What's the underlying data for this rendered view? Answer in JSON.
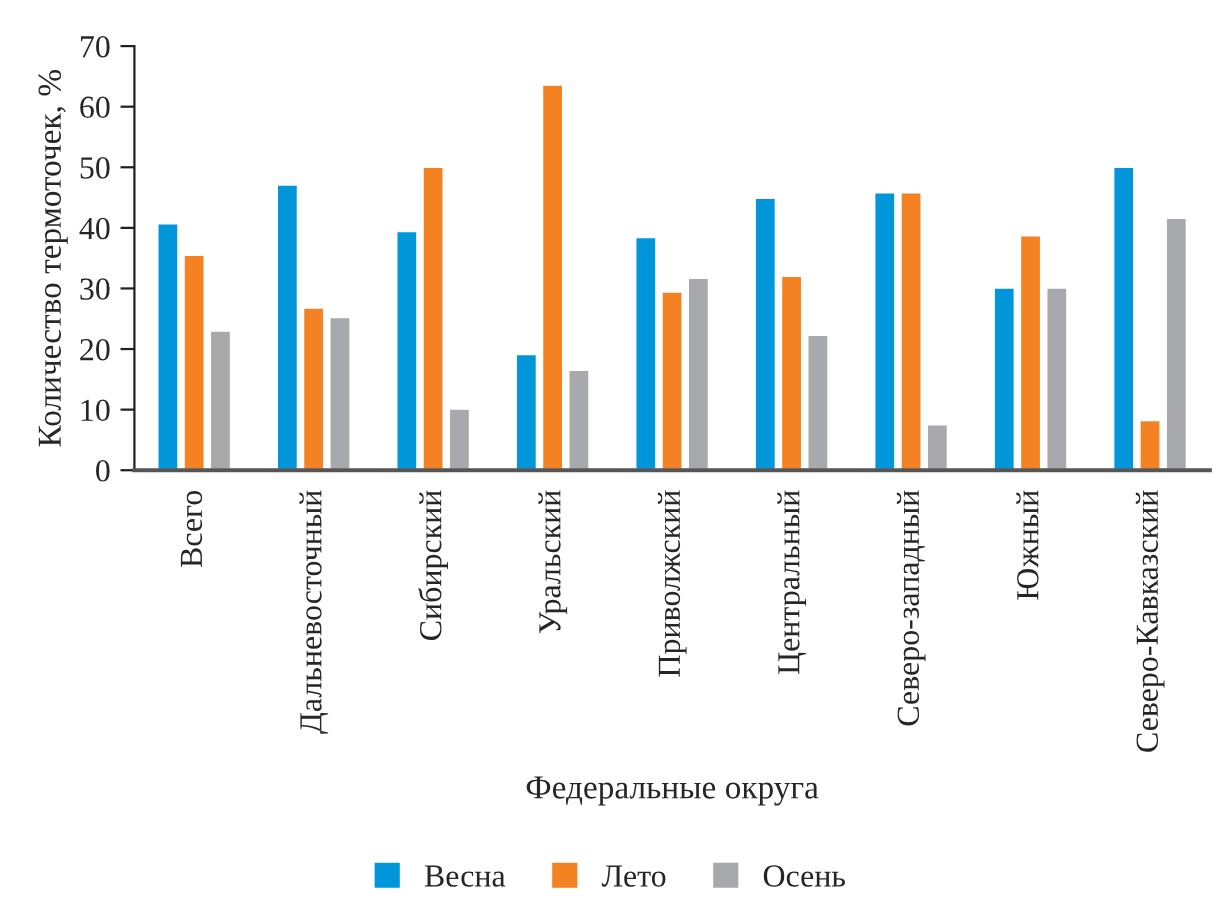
{
  "chart_data": {
    "type": "bar",
    "xlabel": "Федеральные округа",
    "ylabel": "Количество термоточек, %",
    "categories": [
      "Всего",
      "Дальневосточный",
      "Сибирский",
      "Уральский",
      "Приволжский",
      "Центральный",
      "Северо-западный",
      "Южный",
      "Северо-Кавказский"
    ],
    "series": [
      {
        "name": "Весна",
        "color": "#0096d9",
        "values": [
          40.8,
          47.2,
          39.5,
          19.2,
          38.5,
          45.0,
          45.9,
          30.2,
          50.1
        ]
      },
      {
        "name": "Лето",
        "color": "#f48222",
        "values": [
          35.6,
          26.9,
          50.1,
          63.7,
          29.5,
          32.1,
          45.9,
          38.8,
          8.3
        ]
      },
      {
        "name": "Осень",
        "color": "#a8a9ac",
        "values": [
          23.1,
          25.3,
          10.2,
          16.6,
          31.8,
          22.4,
          7.6,
          30.2,
          41.7
        ]
      }
    ],
    "ylim": [
      0,
      70
    ],
    "yticks": [
      0,
      10,
      20,
      30,
      40,
      50,
      60,
      70
    ],
    "grid": false,
    "legend": "bottom"
  }
}
